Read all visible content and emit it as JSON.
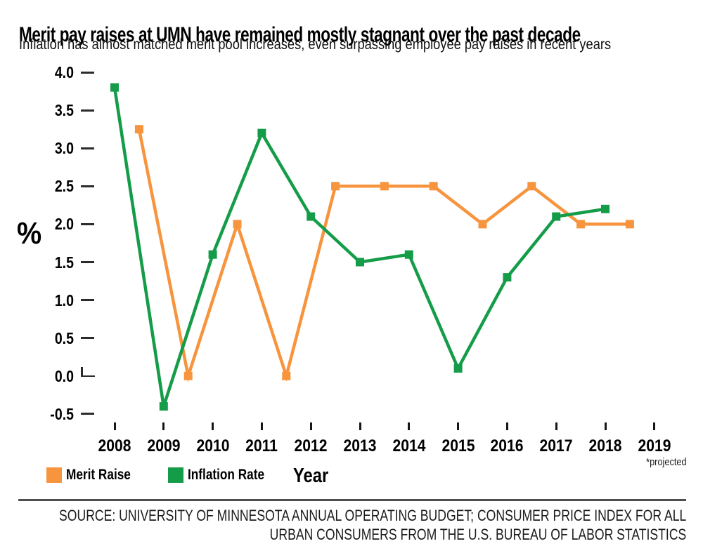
{
  "chart_data": {
    "type": "line",
    "title": "Merit pay raises at UMN have remained mostly stagnant over the past decade",
    "subtitle": "Inflation has almost matched merit pool increases, even surpassing employee pay raises in recent years",
    "xlabel": "Year",
    "ylabel": "%",
    "x_tick_labels": [
      "2008",
      "2009",
      "2010",
      "2011",
      "2012",
      "2013",
      "2014",
      "2015",
      "2016",
      "2017",
      "2018",
      "2019"
    ],
    "y_tick_labels": [
      "4.0",
      "3.5",
      "3.0",
      "2.5",
      "2.0",
      "1.5",
      "1.0",
      "0.5",
      "0.0",
      "-0.5"
    ],
    "xlim": [
      2008,
      2019
    ],
    "ylim": [
      -0.5,
      4.0
    ],
    "grid": false,
    "legend_position": "bottom-left",
    "projected_note": "*projected",
    "series": [
      {
        "name": "Merit Raise",
        "color": "#F7943E",
        "marker": "square",
        "x": [
          2008.5,
          2009.5,
          2010.5,
          2011.5,
          2012.5,
          2013.5,
          2014.5,
          2015.5,
          2016.5,
          2017.5,
          2018.5
        ],
        "y": [
          3.25,
          0.0,
          2.0,
          0.0,
          2.5,
          2.5,
          2.5,
          2.0,
          2.5,
          2.0,
          2.0
        ]
      },
      {
        "name": "Inflation Rate",
        "color": "#149C49",
        "marker": "square",
        "x": [
          2008,
          2009,
          2010,
          2011,
          2012,
          2013,
          2014,
          2015,
          2016,
          2017,
          2018
        ],
        "y": [
          3.8,
          -0.4,
          1.6,
          3.2,
          2.1,
          1.5,
          1.6,
          0.1,
          1.3,
          2.1,
          2.2
        ]
      }
    ]
  },
  "footer": {
    "source_line1": "SOURCE: UNIVERSITY OF MINNESOTA ANNUAL OPERATING BUDGET; CONSUMER PRICE INDEX FOR ALL",
    "source_line2": "URBAN CONSUMERS FROM THE U.S. BUREAU OF LABOR STATISTICS"
  }
}
